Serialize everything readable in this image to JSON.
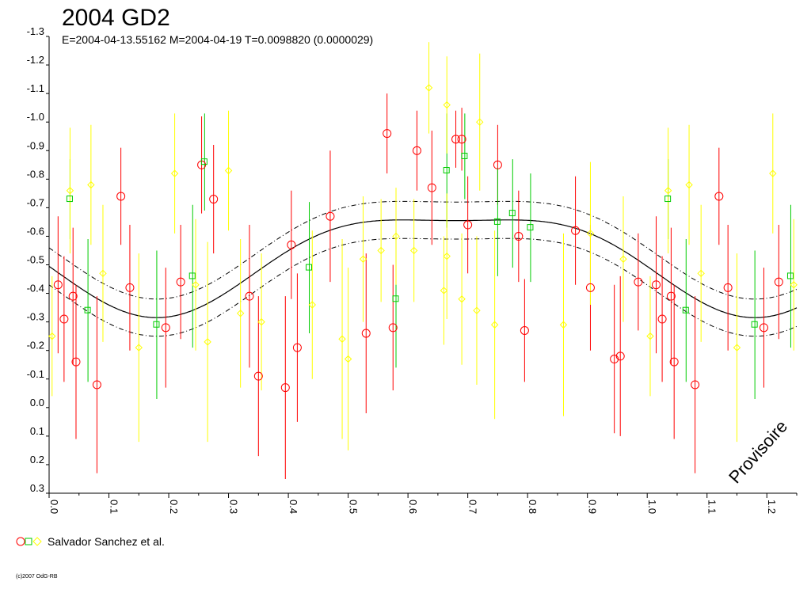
{
  "chart_data": {
    "type": "scatter",
    "title": "2004 GD2",
    "subtitle": "E=2004-04-13.55162    M=2004-04-19    T=0.0098820 (0.0000029)",
    "legend_label": "Salvador Sanchez et al.",
    "copyright": "(c)2007 OdG-RB",
    "watermark": "Provisoire",
    "xlim": [
      0.0,
      1.25
    ],
    "ylim": [
      0.3,
      -1.3
    ],
    "y_axis_inverted": true,
    "x_ticks": [
      "0.0",
      "0.1",
      "0.2",
      "0.3",
      "0.4",
      "0.5",
      "0.6",
      "0.7",
      "0.8",
      "0.9",
      "1.0",
      "1.1",
      "1.2"
    ],
    "y_ticks": [
      "-1.3",
      "-1.2",
      "-1.1",
      "-1.0",
      "-0.9",
      "-0.8",
      "-0.7",
      "-0.6",
      "-0.5",
      "-0.4",
      "-0.3",
      "-0.2",
      "-0.1",
      "0.0",
      "0.1",
      "0.2",
      "0.3"
    ],
    "grid": false,
    "model_curve": {
      "color": "#000000",
      "envelope_offset": 0.065
    },
    "series": [
      {
        "name": "Salvador Sanchez et al.",
        "marker": "circle",
        "color": "#ff0000",
        "points": [
          {
            "x": 0.015,
            "y": -0.43,
            "err": 0.24
          },
          {
            "x": 0.025,
            "y": -0.31,
            "err": 0.22
          },
          {
            "x": 0.04,
            "y": -0.39,
            "err": 0.24
          },
          {
            "x": 0.045,
            "y": -0.16,
            "err": 0.27
          },
          {
            "x": 0.08,
            "y": -0.08,
            "err": 0.31
          },
          {
            "x": 0.12,
            "y": -0.74,
            "err": 0.17
          },
          {
            "x": 0.135,
            "y": -0.42,
            "err": 0.22
          },
          {
            "x": 0.195,
            "y": -0.28,
            "err": 0.21
          },
          {
            "x": 0.22,
            "y": -0.44,
            "err": 0.2
          },
          {
            "x": 0.255,
            "y": -0.85,
            "err": 0.17
          },
          {
            "x": 0.275,
            "y": -0.73,
            "err": 0.19
          },
          {
            "x": 0.335,
            "y": -0.39,
            "err": 0.25
          },
          {
            "x": 0.35,
            "y": -0.11,
            "err": 0.28
          },
          {
            "x": 0.395,
            "y": -0.07,
            "err": 0.32
          },
          {
            "x": 0.405,
            "y": -0.57,
            "err": 0.19
          },
          {
            "x": 0.415,
            "y": -0.21,
            "err": 0.26
          },
          {
            "x": 0.47,
            "y": -0.67,
            "err": 0.23
          },
          {
            "x": 0.53,
            "y": -0.26,
            "err": 0.28
          },
          {
            "x": 0.565,
            "y": -0.96,
            "err": 0.14
          },
          {
            "x": 0.575,
            "y": -0.28,
            "err": 0.22
          },
          {
            "x": 0.615,
            "y": -0.9,
            "err": 0.14
          },
          {
            "x": 0.64,
            "y": -0.77,
            "err": 0.2
          },
          {
            "x": 0.68,
            "y": -0.94,
            "err": 0.1
          },
          {
            "x": 0.69,
            "y": -0.94,
            "err": 0.11
          },
          {
            "x": 0.7,
            "y": -0.64,
            "err": 0.17
          },
          {
            "x": 0.75,
            "y": -0.85,
            "err": 0.14
          },
          {
            "x": 0.785,
            "y": -0.6,
            "err": 0.16
          },
          {
            "x": 0.795,
            "y": -0.27,
            "err": 0.18
          },
          {
            "x": 0.88,
            "y": -0.62,
            "err": 0.19
          },
          {
            "x": 0.905,
            "y": -0.42,
            "err": 0.22
          },
          {
            "x": 0.945,
            "y": -0.17,
            "err": 0.26
          },
          {
            "x": 0.955,
            "y": -0.18,
            "err": 0.28
          },
          {
            "x": 0.985,
            "y": -0.44,
            "err": 0.17
          },
          {
            "x": 1.015,
            "y": -0.43,
            "err": 0.24
          },
          {
            "x": 1.025,
            "y": -0.31,
            "err": 0.22
          },
          {
            "x": 1.04,
            "y": -0.39,
            "err": 0.24
          },
          {
            "x": 1.045,
            "y": -0.16,
            "err": 0.27
          },
          {
            "x": 1.08,
            "y": -0.08,
            "err": 0.31
          },
          {
            "x": 1.12,
            "y": -0.74,
            "err": 0.17
          },
          {
            "x": 1.135,
            "y": -0.42,
            "err": 0.22
          },
          {
            "x": 1.195,
            "y": -0.28,
            "err": 0.21
          },
          {
            "x": 1.22,
            "y": -0.44,
            "err": 0.2
          }
        ]
      },
      {
        "name": "Salvador Sanchez et al.",
        "marker": "square",
        "color": "#00cc00",
        "points": [
          {
            "x": 0.035,
            "y": -0.73,
            "err": 0.14
          },
          {
            "x": 0.065,
            "y": -0.34,
            "err": 0.25
          },
          {
            "x": 0.18,
            "y": -0.29,
            "err": 0.26
          },
          {
            "x": 0.24,
            "y": -0.46,
            "err": 0.25
          },
          {
            "x": 0.26,
            "y": -0.86,
            "err": 0.17
          },
          {
            "x": 0.435,
            "y": -0.49,
            "err": 0.23
          },
          {
            "x": 0.58,
            "y": -0.38,
            "err": 0.24
          },
          {
            "x": 0.665,
            "y": -0.83,
            "err": 0.2
          },
          {
            "x": 0.695,
            "y": -0.88,
            "err": 0.15
          },
          {
            "x": 0.75,
            "y": -0.65,
            "err": 0.19
          },
          {
            "x": 0.775,
            "y": -0.68,
            "err": 0.19
          },
          {
            "x": 0.805,
            "y": -0.63,
            "err": 0.19
          },
          {
            "x": 1.035,
            "y": -0.73,
            "err": 0.14
          },
          {
            "x": 1.065,
            "y": -0.34,
            "err": 0.25
          },
          {
            "x": 1.18,
            "y": -0.29,
            "err": 0.26
          },
          {
            "x": 1.24,
            "y": -0.46,
            "err": 0.25
          }
        ]
      },
      {
        "name": "Salvador Sanchez et al.",
        "marker": "diamond",
        "color": "#ffff00",
        "points": [
          {
            "x": 0.005,
            "y": -0.25,
            "err": 0.21
          },
          {
            "x": 0.035,
            "y": -0.76,
            "err": 0.22
          },
          {
            "x": 0.07,
            "y": -0.78,
            "err": 0.21
          },
          {
            "x": 0.09,
            "y": -0.47,
            "err": 0.24
          },
          {
            "x": 0.15,
            "y": -0.21,
            "err": 0.33
          },
          {
            "x": 0.21,
            "y": -0.82,
            "err": 0.21
          },
          {
            "x": 0.245,
            "y": -0.43,
            "err": 0.23
          },
          {
            "x": 0.265,
            "y": -0.23,
            "err": 0.35
          },
          {
            "x": 0.3,
            "y": -0.83,
            "err": 0.21
          },
          {
            "x": 0.32,
            "y": -0.33,
            "err": 0.26
          },
          {
            "x": 0.355,
            "y": -0.3,
            "err": 0.24
          },
          {
            "x": 0.44,
            "y": -0.36,
            "err": 0.26
          },
          {
            "x": 0.49,
            "y": -0.24,
            "err": 0.35
          },
          {
            "x": 0.5,
            "y": -0.17,
            "err": 0.32
          },
          {
            "x": 0.525,
            "y": -0.52,
            "err": 0.22
          },
          {
            "x": 0.555,
            "y": -0.55,
            "err": 0.18
          },
          {
            "x": 0.58,
            "y": -0.6,
            "err": 0.17
          },
          {
            "x": 0.61,
            "y": -0.55,
            "err": 0.18
          },
          {
            "x": 0.635,
            "y": -1.12,
            "err": 0.16
          },
          {
            "x": 0.66,
            "y": -0.41,
            "err": 0.19
          },
          {
            "x": 0.665,
            "y": -0.53,
            "err": 0.22
          },
          {
            "x": 0.665,
            "y": -1.06,
            "err": 0.17
          },
          {
            "x": 0.69,
            "y": -0.38,
            "err": 0.23
          },
          {
            "x": 0.715,
            "y": -0.34,
            "err": 0.26
          },
          {
            "x": 0.72,
            "y": -1.0,
            "err": 0.24
          },
          {
            "x": 0.745,
            "y": -0.29,
            "err": 0.33
          },
          {
            "x": 0.86,
            "y": -0.29,
            "err": 0.32
          },
          {
            "x": 0.905,
            "y": -0.61,
            "err": 0.25
          },
          {
            "x": 0.96,
            "y": -0.52,
            "err": 0.22
          },
          {
            "x": 1.005,
            "y": -0.25,
            "err": 0.21
          },
          {
            "x": 1.035,
            "y": -0.76,
            "err": 0.22
          },
          {
            "x": 1.07,
            "y": -0.78,
            "err": 0.21
          },
          {
            "x": 1.09,
            "y": -0.47,
            "err": 0.24
          },
          {
            "x": 1.15,
            "y": -0.21,
            "err": 0.33
          },
          {
            "x": 1.21,
            "y": -0.82,
            "err": 0.21
          },
          {
            "x": 1.245,
            "y": -0.43,
            "err": 0.23
          }
        ]
      }
    ]
  }
}
